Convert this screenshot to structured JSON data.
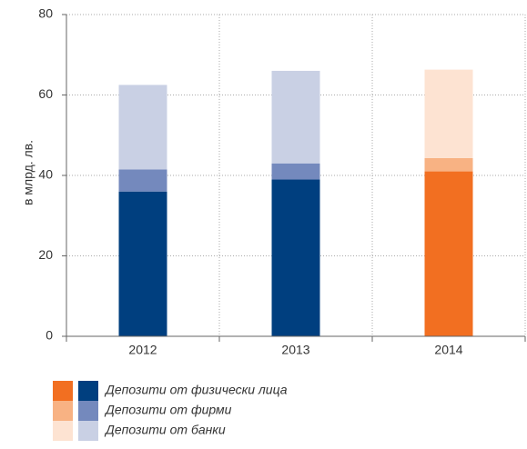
{
  "chart_data": {
    "type": "stacked_bar",
    "y_label": "в млрд. лв.",
    "categories": [
      "2012",
      "2013",
      "2014"
    ],
    "series": [
      {
        "name": "Депозити от физически лица",
        "colors": [
          "#003f7f",
          "#003f7f",
          "#f26f21"
        ],
        "values": [
          36,
          39,
          41
        ]
      },
      {
        "name": "Депозити от фирми",
        "colors": [
          "#7489bd",
          "#7489bd",
          "#f8b283"
        ],
        "values": [
          5.5,
          4,
          3.3
        ]
      },
      {
        "name": "Депозити от банки",
        "colors": [
          "#c9d0e4",
          "#c9d0e4",
          "#fde3d2"
        ],
        "values": [
          21,
          23,
          22
        ]
      }
    ],
    "ylim": [
      0,
      80
    ],
    "yticks": [
      0,
      20,
      40,
      60,
      80
    ],
    "grid": true
  }
}
